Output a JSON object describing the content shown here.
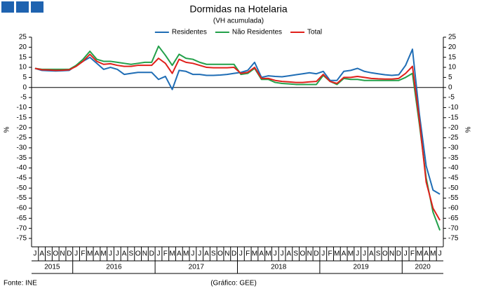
{
  "chart_data": {
    "type": "line",
    "title": "Dormidas na Hotelaria",
    "subtitle": "(VH acumulada)",
    "ylabel": "%",
    "y2label": "%",
    "source": "Fonte: INE",
    "credit": "(Gráfico: GEE)",
    "categories": [
      "J",
      "A",
      "S",
      "O",
      "N",
      "D",
      "J",
      "F",
      "M",
      "A",
      "M",
      "J",
      "J",
      "A",
      "S",
      "O",
      "N",
      "D",
      "J",
      "F",
      "M",
      "A",
      "M",
      "J",
      "J",
      "A",
      "S",
      "O",
      "N",
      "D",
      "J",
      "F",
      "M",
      "A",
      "M",
      "J",
      "J",
      "A",
      "S",
      "O",
      "N",
      "D",
      "J",
      "F",
      "M",
      "A",
      "M",
      "J",
      "J",
      "A",
      "S",
      "O",
      "N",
      "D",
      "J",
      "F",
      "M",
      "A",
      "M",
      "J"
    ],
    "years": [
      "2015",
      "2016",
      "2017",
      "2018",
      "2019",
      "2020"
    ],
    "series": [
      {
        "name": "Residentes",
        "color": "#1f6db5",
        "values": [
          9.5,
          8.5,
          8.3,
          8.2,
          8.3,
          8.5,
          11,
          13,
          15,
          12,
          9,
          10,
          9,
          6.5,
          7,
          7.5,
          7.5,
          7.5,
          4,
          5.5,
          -1,
          8.5,
          8,
          6.5,
          6.5,
          6,
          6,
          6.2,
          6.5,
          7,
          7.5,
          8.5,
          12.5,
          5,
          5.8,
          5.5,
          5.3,
          5.8,
          6.3,
          6.8,
          7.3,
          6.8,
          8,
          3.5,
          3.5,
          8,
          8.5,
          9.5,
          8,
          7.3,
          6.8,
          6.3,
          6,
          6.3,
          11,
          19,
          -13,
          -39,
          -51,
          -53
        ]
      },
      {
        "name": "Não Residentes",
        "color": "#23a04a",
        "values": [
          9.5,
          9,
          9,
          9,
          9,
          9,
          11,
          14,
          18,
          14,
          13,
          13,
          12.5,
          12,
          11.5,
          12,
          12.5,
          12.5,
          20.5,
          16,
          11,
          16.5,
          14.5,
          14,
          12.5,
          11.5,
          11.5,
          11.5,
          11.5,
          11.5,
          6.5,
          7,
          9.5,
          4,
          4,
          2.5,
          2,
          1.8,
          1.5,
          1.5,
          1.5,
          1.5,
          6,
          3,
          1.5,
          4.5,
          4,
          4,
          3.5,
          3.5,
          3.5,
          3.5,
          3.5,
          3.5,
          5,
          7,
          -18,
          -45,
          -62,
          -71
        ]
      },
      {
        "name": "Total",
        "color": "#e0201b",
        "values": [
          9.5,
          8.8,
          8.7,
          8.5,
          8.6,
          8.8,
          10.5,
          13,
          16.5,
          13,
          11.5,
          11.8,
          11,
          10.5,
          10.5,
          11,
          11,
          11,
          14.5,
          12,
          7,
          14,
          12.5,
          12,
          11,
          10,
          9.8,
          9.8,
          9.8,
          10,
          7,
          7.5,
          10,
          4.5,
          4.5,
          3.5,
          3,
          2.8,
          2.5,
          2.5,
          2.8,
          3,
          6.5,
          3,
          2,
          5,
          5,
          5.5,
          5,
          4.5,
          4.3,
          4.2,
          4.2,
          4.5,
          7,
          10.5,
          -16,
          -47,
          -60,
          -66
        ]
      }
    ],
    "ylim": [
      -75,
      25
    ],
    "yticks": [
      -75,
      -70,
      -65,
      -60,
      -55,
      -50,
      -45,
      -40,
      -35,
      -30,
      -25,
      -20,
      -15,
      -10,
      -5,
      0,
      5,
      10,
      15,
      20,
      25
    ],
    "y2lim": [
      -75,
      25
    ],
    "y2ticks": [
      -75,
      -70,
      -65,
      -60,
      -55,
      -50,
      -45,
      -40,
      -35,
      -30,
      -25,
      -20,
      -15,
      -10,
      -5,
      0,
      5,
      10,
      15,
      20,
      25
    ],
    "legend": "top",
    "grid": false
  }
}
